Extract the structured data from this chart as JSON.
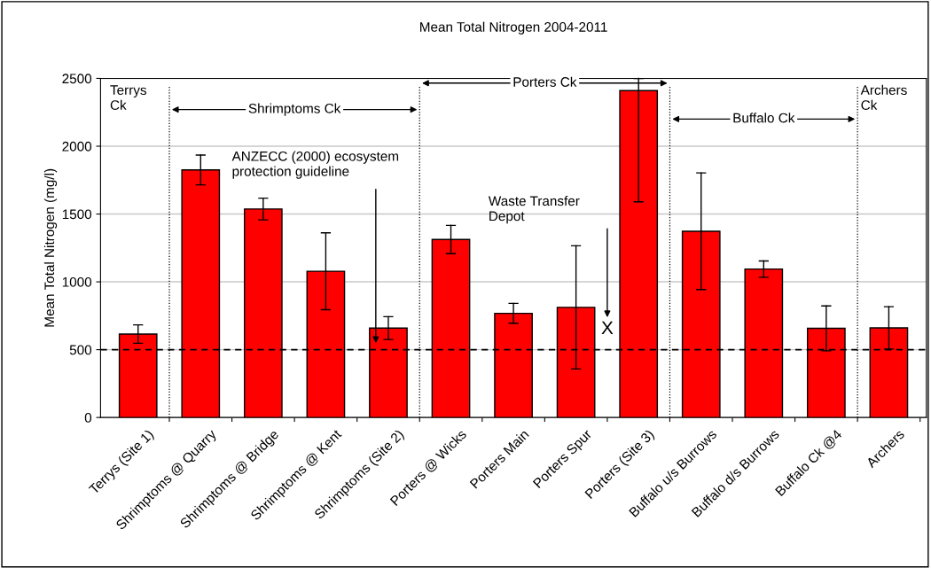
{
  "chart_data": {
    "type": "bar",
    "title": "Mean Total Nitrogen 2004-2011",
    "ylabel": "Mean Total Nitrogen (mg/l)",
    "categories": [
      "Terrys (Site 1)",
      "Shrimptoms @ Quarry",
      "Shrimptoms @ Bridge",
      "Shrimptoms @ Kent",
      "Shrimptoms (Site 2)",
      "Porters @ Wicks",
      "Porters Main",
      "Porters Spur",
      "Porters (Site 3)",
      "Buffalo u/s Burrows",
      "Buffalo d/s Burrows",
      "Buffalo Ck @4",
      "Archers"
    ],
    "values": [
      615,
      1825,
      1537,
      1078,
      659,
      1312,
      768,
      812,
      2410,
      1373,
      1094,
      657,
      661
    ],
    "errors": [
      68,
      110,
      80,
      283,
      84,
      104,
      73,
      454,
      [
        1590,
        2500
      ],
      430,
      60,
      165,
      156
    ],
    "color": "#ff0000",
    "ylim": [
      0,
      2500
    ],
    "yticks": [
      0,
      500,
      1000,
      1500,
      2000,
      2500
    ],
    "grid": "y",
    "legend": false,
    "ref_lines": [
      {
        "axis": "y",
        "value": 500,
        "color": "#000000",
        "line_style": "dashed"
      }
    ],
    "annotations": [
      "Terrys\nCk",
      "Shrimptoms Ck",
      "Porters Ck",
      "Buffalo Ck",
      "Archers\nCk",
      "ANZECC (2000) ecosystem\nprotection guideline",
      "Waste Transfer\nDepot",
      "X"
    ]
  }
}
